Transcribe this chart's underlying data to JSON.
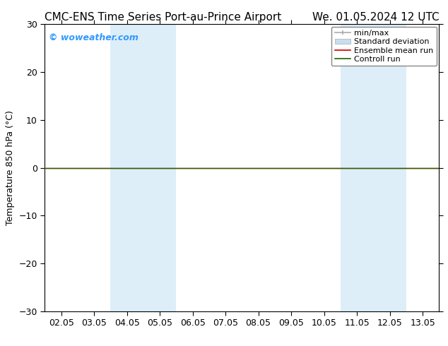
{
  "title_left": "CMC-ENS Time Series Port-au-Prince Airport",
  "title_right": "We. 01.05.2024 12 UTC",
  "ylabel": "Temperature 850 hPa (°C)",
  "ylim": [
    -30,
    30
  ],
  "yticks": [
    -30,
    -20,
    -10,
    0,
    10,
    20,
    30
  ],
  "x_tick_labels": [
    "02.05",
    "03.05",
    "04.05",
    "05.05",
    "06.05",
    "07.05",
    "08.05",
    "09.05",
    "10.05",
    "11.05",
    "12.05",
    "13.05"
  ],
  "x_tick_positions": [
    0,
    1,
    2,
    3,
    4,
    5,
    6,
    7,
    8,
    9,
    10,
    11
  ],
  "x_min": -0.5,
  "x_max": 11.5,
  "shaded_regions": [
    {
      "x_start": 2.0,
      "x_end": 3.0,
      "color": "#ddeef8"
    },
    {
      "x_start": 3.0,
      "x_end": 4.0,
      "color": "#ddeef8"
    },
    {
      "x_start": 9.0,
      "x_end": 10.0,
      "color": "#ddeef8"
    },
    {
      "x_start": 10.0,
      "x_end": 11.0,
      "color": "#ddeef8"
    }
  ],
  "flat_line_y": 0.0,
  "flat_line_color_green": "#1a6600",
  "flat_line_color_red": "#cc0000",
  "watermark_text": "© woweather.com",
  "watermark_color": "#3399ff",
  "legend_labels": [
    "min/max",
    "Standard deviation",
    "Ensemble mean run",
    "Controll run"
  ],
  "legend_colors_line": [
    "#aaaaaa",
    "#c8ddf0",
    "#cc0000",
    "#1a6600"
  ],
  "background_color": "#ffffff",
  "plot_bg_color": "#ffffff",
  "title_fontsize": 11,
  "tick_fontsize": 9,
  "ylabel_fontsize": 9,
  "legend_fontsize": 8
}
